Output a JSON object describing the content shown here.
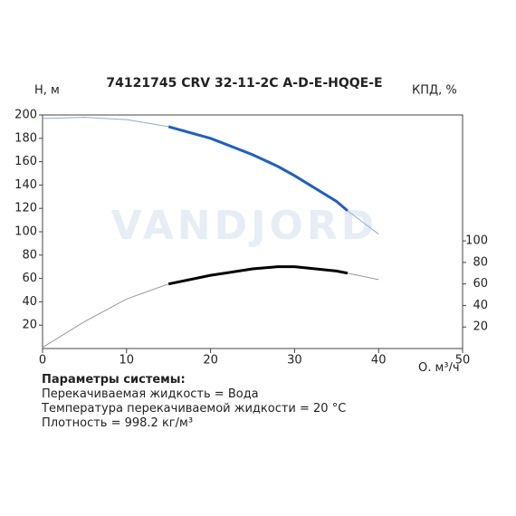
{
  "chart_data": {
    "type": "line",
    "title": "74121745 CRV 32-11-2C A-D-E-HQQE-E",
    "watermark": "VANDJORD",
    "y_label": "H, м",
    "y2_label": "КПД, %",
    "x_label": "Q, м³/ч",
    "x": [
      0,
      5,
      10,
      15,
      20,
      25,
      28,
      30,
      35,
      36.3,
      40
    ],
    "series": [
      {
        "color": "#8faad6",
        "width": 1,
        "values": [
          197,
          198,
          196,
          190,
          180,
          166,
          156,
          148,
          126,
          118,
          98
        ]
      },
      {
        "color": "#1f5fbf",
        "width": 3,
        "values": [
          null,
          null,
          null,
          190,
          180,
          166,
          156,
          148,
          126,
          118,
          null
        ]
      },
      {
        "color": "#999999",
        "width": 1,
        "axis": "y2",
        "values": [
          1,
          25,
          46,
          60,
          68,
          74,
          76,
          76,
          72,
          70,
          64
        ]
      },
      {
        "color": "#000000",
        "width": 3,
        "axis": "y2",
        "values": [
          null,
          null,
          null,
          60,
          68,
          74,
          76,
          76,
          72,
          70,
          null
        ]
      }
    ],
    "xlim": [
      0,
      50
    ],
    "xticks": [
      0,
      10,
      20,
      30,
      40,
      50
    ],
    "ylim": [
      0,
      200
    ],
    "yticks": [
      20,
      40,
      60,
      80,
      100,
      120,
      140,
      160,
      180,
      200
    ],
    "y2lim": [
      0,
      217
    ],
    "y2ticks": [
      20,
      40,
      60,
      80,
      100
    ],
    "grid": false
  },
  "info": {
    "heading": "Параметры системы:",
    "lines": [
      "Перекачиваемая жидкость = Вода",
      "Температура перекачиваемой жидкости = 20 °C",
      "Плотность = 998.2 кг/м³"
    ]
  }
}
